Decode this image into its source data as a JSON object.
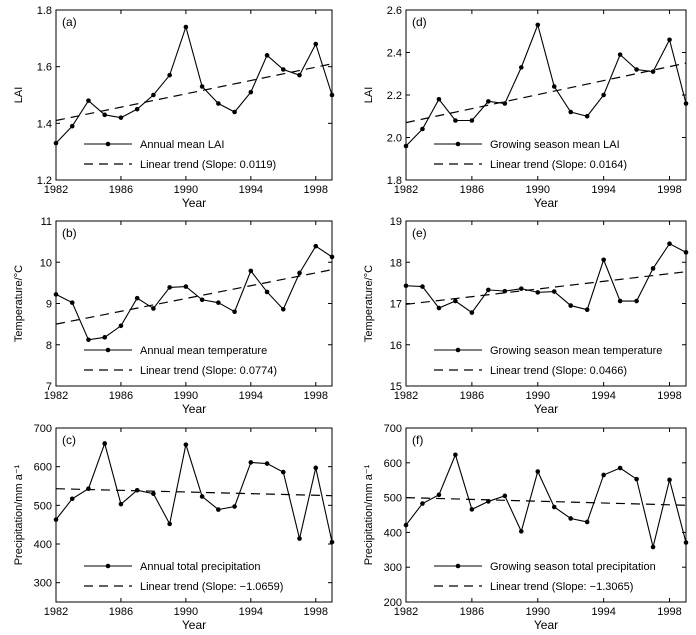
{
  "chart_data": [
    {
      "id": "a",
      "type": "line",
      "panel_label": "(a)",
      "xlabel": "Year",
      "ylabel": "LAI",
      "xlim": [
        1982,
        1999
      ],
      "ylim": [
        1.2,
        1.8
      ],
      "xticks": [
        "1982",
        "1986",
        "1990",
        "1994",
        "1998"
      ],
      "yticks": [
        "1.2",
        "1.4",
        "1.6",
        "1.8"
      ],
      "x": [
        1982,
        1983,
        1984,
        1985,
        1986,
        1987,
        1988,
        1989,
        1990,
        1991,
        1992,
        1993,
        1994,
        1995,
        1996,
        1997,
        1998,
        1999
      ],
      "series": [
        {
          "name": "Annual mean LAI",
          "style": "solid-markers",
          "values": [
            1.33,
            1.39,
            1.48,
            1.43,
            1.42,
            1.45,
            1.5,
            1.57,
            1.74,
            1.53,
            1.47,
            1.44,
            1.51,
            1.64,
            1.59,
            1.57,
            1.68,
            1.5
          ]
        },
        {
          "name": "Linear trend (Slope: 0.0119)",
          "style": "dashed",
          "values": [
            1.41,
            1.61
          ],
          "x": [
            1982,
            1999
          ]
        }
      ]
    },
    {
      "id": "d",
      "type": "line",
      "panel_label": "(d)",
      "xlabel": "Year",
      "ylabel": "LAI",
      "xlim": [
        1982,
        1999
      ],
      "ylim": [
        1.8,
        2.6
      ],
      "xticks": [
        "1982",
        "1986",
        "1990",
        "1994",
        "1998"
      ],
      "yticks": [
        "1.8",
        "2.0",
        "2.2",
        "2.4",
        "2.6"
      ],
      "x": [
        1982,
        1983,
        1984,
        1985,
        1986,
        1987,
        1988,
        1989,
        1990,
        1991,
        1992,
        1993,
        1994,
        1995,
        1996,
        1997,
        1998,
        1999
      ],
      "series": [
        {
          "name": "Growing season mean LAI",
          "style": "solid-markers",
          "values": [
            1.96,
            2.04,
            2.18,
            2.08,
            2.08,
            2.17,
            2.16,
            2.33,
            2.53,
            2.24,
            2.12,
            2.1,
            2.2,
            2.39,
            2.32,
            2.31,
            2.46,
            2.16
          ]
        },
        {
          "name": "Linear trend (Slope: 0.0164)",
          "style": "dashed",
          "values": [
            2.07,
            2.35
          ],
          "x": [
            1982,
            1999
          ]
        }
      ]
    },
    {
      "id": "b",
      "type": "line",
      "panel_label": "(b)",
      "xlabel": "Year",
      "ylabel": "Temperature/°C",
      "xlim": [
        1982,
        1999
      ],
      "ylim": [
        7,
        11
      ],
      "xticks": [
        "1982",
        "1986",
        "1990",
        "1994",
        "1998"
      ],
      "yticks": [
        "7",
        "8",
        "9",
        "10",
        "11"
      ],
      "x": [
        1982,
        1983,
        1984,
        1985,
        1986,
        1987,
        1988,
        1989,
        1990,
        1991,
        1992,
        1993,
        1994,
        1995,
        1996,
        1997,
        1998,
        1999
      ],
      "series": [
        {
          "name": "Annual mean temperature",
          "style": "solid-markers",
          "values": [
            9.22,
            9.02,
            8.12,
            8.18,
            8.46,
            9.13,
            8.88,
            9.39,
            9.41,
            9.09,
            9.02,
            8.8,
            9.79,
            9.28,
            8.86,
            9.74,
            10.39,
            10.13
          ]
        },
        {
          "name": "Linear trend (Slope: 0.0774)",
          "style": "dashed",
          "values": [
            8.5,
            9.82
          ],
          "x": [
            1982,
            1999
          ]
        }
      ]
    },
    {
      "id": "e",
      "type": "line",
      "panel_label": "(e)",
      "xlabel": "Year",
      "ylabel": "Temperature/°C",
      "xlim": [
        1982,
        1999
      ],
      "ylim": [
        15,
        19
      ],
      "xticks": [
        "1982",
        "1986",
        "1990",
        "1994",
        "1998"
      ],
      "yticks": [
        "15",
        "16",
        "17",
        "18",
        "19"
      ],
      "x": [
        1982,
        1983,
        1984,
        1985,
        1986,
        1987,
        1988,
        1989,
        1990,
        1991,
        1992,
        1993,
        1994,
        1995,
        1996,
        1997,
        1998,
        1999
      ],
      "series": [
        {
          "name": "Growing season mean temperature",
          "style": "solid-markers",
          "values": [
            17.43,
            17.41,
            16.89,
            17.06,
            16.78,
            17.33,
            17.3,
            17.36,
            17.27,
            17.29,
            16.95,
            16.85,
            18.06,
            17.06,
            17.06,
            17.85,
            18.45,
            18.24
          ]
        },
        {
          "name": "Linear trend (Slope: 0.0466)",
          "style": "dashed",
          "values": [
            16.98,
            17.77
          ],
          "x": [
            1982,
            1999
          ]
        }
      ]
    },
    {
      "id": "c",
      "type": "line",
      "panel_label": "(c)",
      "xlabel": "Year",
      "ylabel": "Precipitation/mm a⁻¹",
      "xlim": [
        1982,
        1999
      ],
      "ylim": [
        250,
        700
      ],
      "xticks": [
        "1982",
        "1986",
        "1990",
        "1994",
        "1998"
      ],
      "yticks": [
        "300",
        "400",
        "500",
        "600",
        "700"
      ],
      "x": [
        1982,
        1983,
        1984,
        1985,
        1986,
        1987,
        1988,
        1989,
        1990,
        1991,
        1992,
        1993,
        1994,
        1995,
        1996,
        1997,
        1998,
        1999
      ],
      "series": [
        {
          "name": "Annual total precipitation",
          "style": "solid-markers",
          "values": [
            463,
            517,
            543,
            660,
            503,
            539,
            530,
            452,
            657,
            523,
            489,
            497,
            611,
            608,
            586,
            414,
            597,
            405
          ]
        },
        {
          "name": "Linear trend (Slope: −1.0659)",
          "style": "dashed",
          "values": [
            543,
            525
          ],
          "x": [
            1982,
            1999
          ]
        }
      ]
    },
    {
      "id": "f",
      "type": "line",
      "panel_label": "(f)",
      "xlabel": "Year",
      "ylabel": "Precipitation/mm a⁻¹",
      "xlim": [
        1982,
        1999
      ],
      "ylim": [
        200,
        700
      ],
      "xticks": [
        "1982",
        "1986",
        "1990",
        "1994",
        "1998"
      ],
      "yticks": [
        "200",
        "300",
        "400",
        "500",
        "600",
        "700"
      ],
      "x": [
        1982,
        1983,
        1984,
        1985,
        1986,
        1987,
        1988,
        1989,
        1990,
        1991,
        1992,
        1993,
        1994,
        1995,
        1996,
        1997,
        1998,
        1999
      ],
      "series": [
        {
          "name": "Growing season total precipitation",
          "style": "solid-markers",
          "values": [
            421,
            483,
            508,
            623,
            466,
            489,
            505,
            403,
            575,
            473,
            440,
            430,
            565,
            585,
            553,
            358,
            551,
            371
          ]
        },
        {
          "name": "Linear trend (Slope: −1.3065)",
          "style": "dashed",
          "values": [
            500,
            478
          ],
          "x": [
            1982,
            1999
          ]
        }
      ]
    }
  ]
}
